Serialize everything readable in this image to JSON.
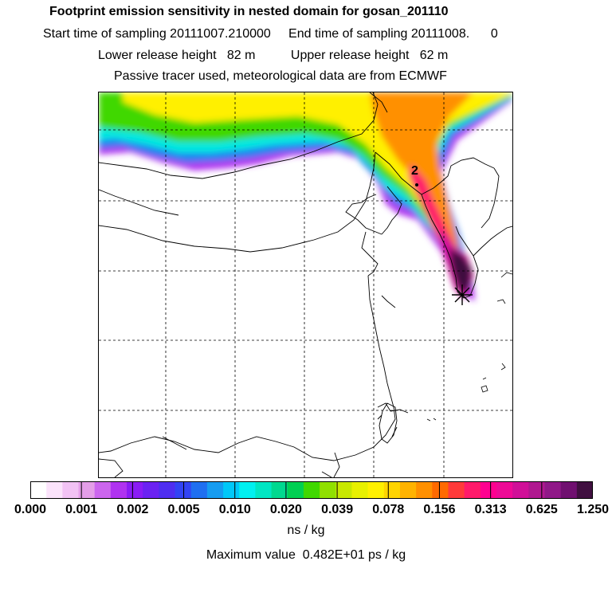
{
  "header": {
    "title": "Footprint emission sensitivity in nested domain for gosan_201110",
    "sampling_line": "Start time of sampling 20111007.210000     End time of sampling 20111008.      0",
    "release_line": "Lower release height   82 m          Upper release height   62 m",
    "tracer_line": "Passive tracer used, meteorological data are from ECMWF"
  },
  "map": {
    "station_marker": "2",
    "release_marker_icon": "asterisk-icon"
  },
  "colorbar": {
    "colors": [
      "#ffffff",
      "#fbe3fb",
      "#f2c2f4",
      "#e49ee8",
      "#cc66ee",
      "#b033f0",
      "#8a1cf5",
      "#6b22f2",
      "#4f2ef0",
      "#3344f4",
      "#1f6ff0",
      "#169cf0",
      "#00c8f8",
      "#00f0f0",
      "#00e6c3",
      "#00d88f",
      "#00d052",
      "#40d800",
      "#90e000",
      "#c8e800",
      "#e8f000",
      "#fff000",
      "#ffd400",
      "#ffb300",
      "#ff9000",
      "#ff6a00",
      "#ff3a3a",
      "#ff1a6a",
      "#ff0090",
      "#ee0a96",
      "#d01098",
      "#b01890",
      "#901888",
      "#701070",
      "#401040"
    ],
    "tick_labels": [
      "0.000",
      "0.001",
      "0.002",
      "0.005",
      "0.010",
      "0.020",
      "0.039",
      "0.078",
      "0.156",
      "0.313",
      "0.625",
      "1.250"
    ],
    "unit": "ns / kg"
  },
  "footer": {
    "max_value": "Maximum value  0.482E+01 ps / kg"
  }
}
